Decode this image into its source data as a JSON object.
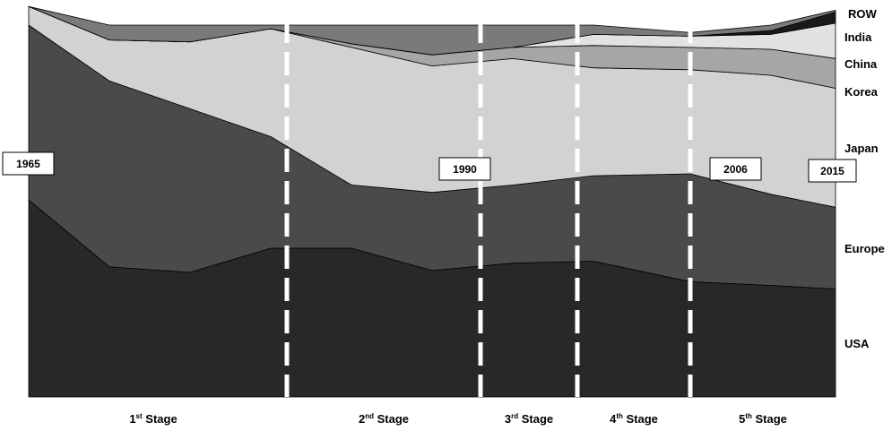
{
  "chart_data": {
    "type": "area",
    "stacked": true,
    "normalized": true,
    "ylim": [
      0,
      1
    ],
    "x": [
      1965,
      1970,
      1975,
      1980,
      1985,
      1990,
      1995,
      2000,
      2006,
      2011,
      2015
    ],
    "series": [
      {
        "name": "USA",
        "color": "#282828",
        "values": [
          0.53,
          0.35,
          0.335,
          0.4,
          0.4,
          0.34,
          0.36,
          0.365,
          0.31,
          0.3,
          0.29
        ]
      },
      {
        "name": "Europe",
        "color": "#4a4a4a",
        "values": [
          0.47,
          0.5,
          0.44,
          0.3,
          0.17,
          0.21,
          0.21,
          0.23,
          0.29,
          0.245,
          0.22
        ]
      },
      {
        "name": "Japan",
        "color": "#d2d2d2",
        "values": [
          0.05,
          0.11,
          0.18,
          0.29,
          0.37,
          0.34,
          0.34,
          0.29,
          0.28,
          0.32,
          0.32
        ]
      },
      {
        "name": "Korea",
        "color": "#a6a6a6",
        "values": [
          0,
          0,
          0,
          0,
          0.01,
          0.03,
          0.03,
          0.06,
          0.06,
          0.07,
          0.08
        ]
      },
      {
        "name": "China",
        "color": "#e2e2e2",
        "values": [
          0,
          0,
          0,
          0,
          0,
          0,
          0,
          0.03,
          0.03,
          0.04,
          0.095
        ]
      },
      {
        "name": "India",
        "color": "#1a1a1a",
        "values": [
          0,
          0,
          0,
          0,
          0,
          0,
          0,
          0,
          0,
          0.01,
          0.03
        ]
      },
      {
        "name": "ROW",
        "color": "#7a7a7a",
        "values": [
          0,
          0.04,
          0.045,
          0.01,
          0.05,
          0.08,
          0.06,
          0.025,
          0.01,
          0.015,
          0.005
        ]
      }
    ],
    "stage_boundaries": [
      1981,
      1993,
      1999,
      2006
    ],
    "stages": [
      {
        "label": "1",
        "sup": "st",
        "rest": " Stage"
      },
      {
        "label": "2",
        "sup": "nd",
        "rest": " Stage"
      },
      {
        "label": "3",
        "sup": "rd",
        "rest": " Stage"
      },
      {
        "label": "4",
        "sup": "th",
        "rest": " Stage"
      },
      {
        "label": "5",
        "sup": "th",
        "rest": " Stage"
      }
    ],
    "year_markers": [
      "1965",
      "1990",
      "2006",
      "2015"
    ]
  }
}
